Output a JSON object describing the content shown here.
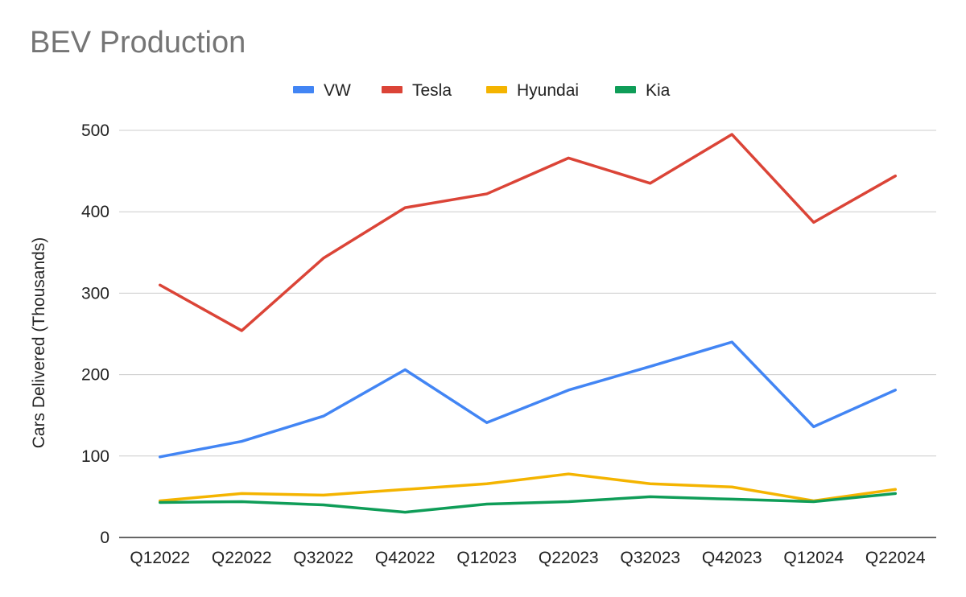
{
  "chart_data": {
    "type": "line",
    "title": "BEV Production",
    "xlabel": "",
    "ylabel": "Cars Delivered (Thousands)",
    "ylim": [
      0,
      500
    ],
    "yticks": [
      0,
      100,
      200,
      300,
      400,
      500
    ],
    "grid": true,
    "legend_position": "top",
    "categories": [
      "Q12022",
      "Q22022",
      "Q32022",
      "Q42022",
      "Q12023",
      "Q22023",
      "Q32023",
      "Q42023",
      "Q12024",
      "Q22024"
    ],
    "series": [
      {
        "name": "VW",
        "color": "#4285f4",
        "values": [
          99,
          118,
          149,
          206,
          141,
          181,
          210,
          240,
          136,
          181
        ]
      },
      {
        "name": "Tesla",
        "color": "#db4437",
        "values": [
          310,
          254,
          343,
          405,
          422,
          466,
          435,
          495,
          387,
          444
        ]
      },
      {
        "name": "Hyundai",
        "color": "#f4b400",
        "values": [
          45,
          54,
          52,
          59,
          66,
          78,
          66,
          62,
          45,
          59
        ]
      },
      {
        "name": "Kia",
        "color": "#0f9d58",
        "values": [
          43,
          44,
          40,
          31,
          41,
          44,
          50,
          47,
          44,
          54
        ]
      }
    ]
  }
}
